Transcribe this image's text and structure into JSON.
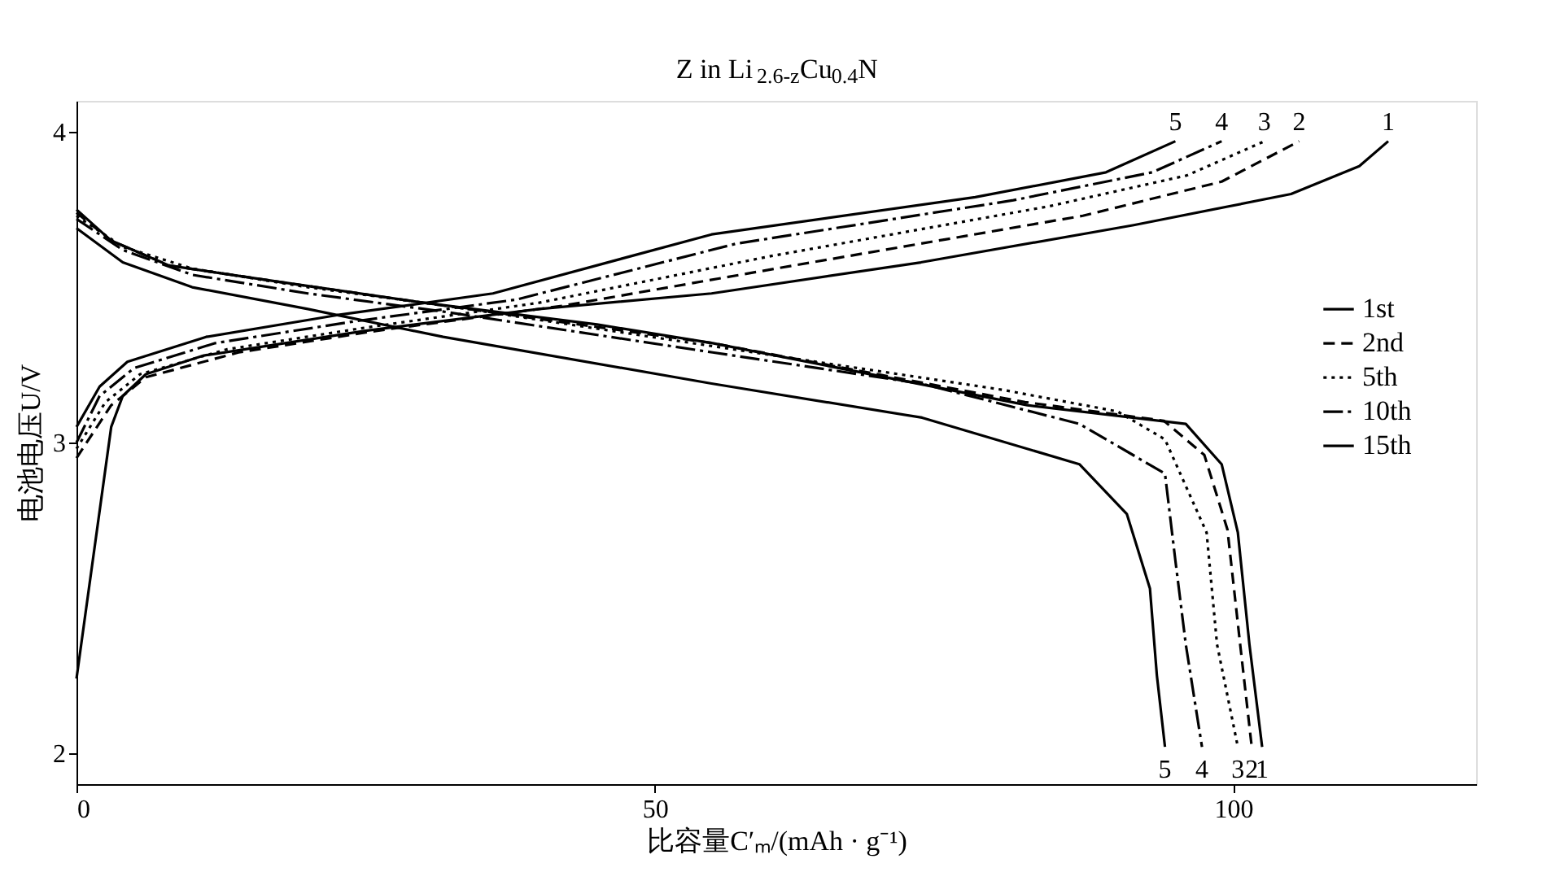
{
  "chart_data": {
    "type": "line",
    "title": "Z in Li$_{2.6-z}$Cu$_{0.4}$N",
    "xlabel": "比容量C′ₘ/(mAh · g⁻¹)",
    "ylabel": "电池电压U/V",
    "xlim": [
      0,
      121
    ],
    "ylim": [
      1.9,
      4.1
    ],
    "xticks": [
      0,
      50,
      100
    ],
    "yticks": [
      2,
      3,
      4
    ],
    "grid": false,
    "legend": "right",
    "marker": "none",
    "series": [
      {
        "name": "1st",
        "color": "#000000",
        "line_style": "solid",
        "x": [
          0,
          3,
          4,
          6,
          11,
          25,
          40,
          54.9,
          73,
          91.4,
          105,
          110.9,
          113.4
        ],
        "values": [
          2.24,
          3.05,
          3.15,
          3.22,
          3.28,
          3.36,
          3.43,
          3.48,
          3.58,
          3.7,
          3.8,
          3.89,
          3.97
        ]
      },
      {
        "name": "2nd",
        "color": "#000000",
        "line_style": "dashed",
        "x": [
          0,
          3,
          6,
          14,
          26,
          42,
          62,
          87,
          99,
          105.7
        ],
        "values": [
          2.95,
          3.12,
          3.21,
          3.29,
          3.36,
          3.44,
          3.57,
          3.73,
          3.84,
          3.97
        ]
      },
      {
        "name": "5th",
        "color": "#000000",
        "line_style": "dotted",
        "x": [
          0,
          2.5,
          5.5,
          13,
          25,
          40,
          60,
          84,
          96,
          102.7
        ],
        "values": [
          2.98,
          3.13,
          3.22,
          3.3,
          3.37,
          3.45,
          3.6,
          3.76,
          3.86,
          3.97
        ]
      },
      {
        "name": "10th",
        "color": "#000000",
        "line_style": "dashed",
        "x": [
          0,
          2,
          5,
          12,
          24,
          38,
          57,
          81,
          93,
          99
        ],
        "values": [
          3.0,
          3.15,
          3.24,
          3.32,
          3.39,
          3.46,
          3.64,
          3.78,
          3.87,
          3.97
        ]
      },
      {
        "name": "15th",
        "color": "#000000",
        "line_style": "solid",
        "x": [
          0,
          2,
          4.4,
          11.2,
          22.5,
          36,
          54.9,
          77.7,
          89,
          95
        ],
        "values": [
          3.05,
          3.18,
          3.26,
          3.34,
          3.41,
          3.48,
          3.67,
          3.79,
          3.87,
          3.97
        ]
      },
      {
        "color": "#000000",
        "line_style": "solid",
        "x": [
          0,
          3,
          8,
          17,
          30,
          45,
          55,
          82.2,
          95.9,
          99,
          100.4,
          101.4,
          102.5
        ],
        "values": [
          3.75,
          3.65,
          3.57,
          3.52,
          3.45,
          3.38,
          3.32,
          3.12,
          3.06,
          2.93,
          2.71,
          2.35,
          2.02
        ]
      },
      {
        "color": "#000000",
        "line_style": "dashed",
        "x": [
          0,
          3,
          8,
          17,
          30,
          55,
          82,
          94,
          97.5,
          99.5,
          100.6,
          101.6
        ],
        "values": [
          3.74,
          3.65,
          3.57,
          3.52,
          3.45,
          3.32,
          3.13,
          3.07,
          2.96,
          2.72,
          2.35,
          2.02
        ]
      },
      {
        "color": "#000000",
        "line_style": "dotted",
        "x": [
          0,
          4,
          10,
          20,
          32,
          55,
          80,
          90,
          94.1,
          97.7,
          98.6,
          100.4
        ],
        "values": [
          3.73,
          3.63,
          3.56,
          3.5,
          3.44,
          3.31,
          3.17,
          3.1,
          3.01,
          2.71,
          2.35,
          2.02
        ]
      },
      {
        "color": "#000000",
        "line_style": "dashed",
        "x": [
          0,
          4,
          10,
          20,
          32,
          55,
          73,
          86.7,
          94.1,
          95,
          95.9,
          97.3
        ],
        "values": [
          3.72,
          3.62,
          3.54,
          3.48,
          3.42,
          3.29,
          3.19,
          3.06,
          2.9,
          2.62,
          2.35,
          2.02
        ]
      },
      {
        "color": "#000000",
        "line_style": "solid",
        "x": [
          0,
          4,
          10,
          20,
          31.7,
          54.9,
          73.1,
          86.7,
          90.8,
          92.8,
          93.4,
          94.1
        ],
        "values": [
          3.69,
          3.58,
          3.5,
          3.43,
          3.34,
          3.19,
          3.08,
          2.93,
          2.77,
          2.53,
          2.25,
          2.02
        ]
      }
    ],
    "annotations": [
      {
        "text": "5",
        "x": 95,
        "y": 3.97
      },
      {
        "text": "4",
        "x": 99,
        "y": 3.97
      },
      {
        "text": "3",
        "x": 102.7,
        "y": 3.97
      },
      {
        "text": "2",
        "x": 105.7,
        "y": 3.97
      },
      {
        "text": "1",
        "x": 113.4,
        "y": 3.97
      },
      {
        "text": "5",
        "x": 94.1,
        "y": 2.02
      },
      {
        "text": "4",
        "x": 97.3,
        "y": 2.02
      },
      {
        "text": "3",
        "x": 100.4,
        "y": 2.02
      },
      {
        "text": "2",
        "x": 101.6,
        "y": 2.02
      },
      {
        "text": "1",
        "x": 102.5,
        "y": 2.02
      }
    ]
  }
}
